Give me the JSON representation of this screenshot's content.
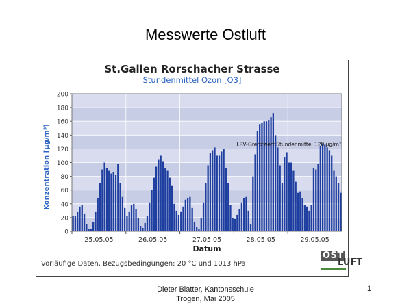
{
  "slide": {
    "title": "Messwerte Ostluft",
    "footer_line1": "Dieter Blatter, Kantonsschule",
    "footer_line2": "Trogen, Mai 2005",
    "page_number": "1"
  },
  "logo": {
    "part1": "OST",
    "part2": "LUFT",
    "accent_color": "#4a8a3c"
  },
  "colors": {
    "bar": "#1f3fa0",
    "plot_bg": "#c8cde6",
    "plot_bg_alt": "#d8dcee",
    "threshold": "#111111"
  },
  "chart_data": {
    "type": "bar",
    "title": "St.Gallen Rorschacher Strasse",
    "subtitle": "Stundenmittel Ozon [O3]",
    "xlabel": "Datum",
    "ylabel": "Konzentration [µg/m³]",
    "ylim": [
      0,
      200
    ],
    "yticks": [
      0,
      20,
      40,
      60,
      80,
      100,
      120,
      140,
      160,
      180,
      200
    ],
    "grid": true,
    "note": "Vorläufige Daten, Bezugsbedingungen: 20 °C und 1013 hPa",
    "x_tick_labels": [
      "25.05.05",
      "26.05.05",
      "27.05.05",
      "28.05.05",
      "29.05.05"
    ],
    "threshold": {
      "value": 120,
      "label": "LRV-Grenzwert Stundenmittel 120 µg/m³"
    },
    "hours_per_day": 24,
    "series": [
      {
        "values": [
          22,
          22,
          28,
          36,
          38,
          26,
          10,
          4,
          3,
          14,
          28,
          48,
          70,
          90,
          100,
          92,
          88,
          84,
          86,
          82,
          98,
          70,
          50,
          34,
          22,
          28,
          38,
          40,
          32,
          20,
          8,
          5,
          12,
          22,
          42,
          60,
          78,
          94,
          104,
          110,
          102,
          92,
          88,
          78,
          66,
          40,
          30,
          24,
          28,
          36,
          46,
          48,
          50,
          34,
          14,
          6,
          4,
          20,
          42,
          70,
          96,
          114,
          118,
          122,
          110,
          110,
          116,
          120,
          92,
          70,
          38,
          20,
          18,
          24,
          32,
          42,
          48,
          50,
          30,
          10,
          80,
          112,
          146,
          156,
          158,
          160,
          160,
          162,
          166,
          172,
          140,
          122,
          96,
          70,
          108,
          115,
          100,
          100,
          88,
          72,
          56,
          58,
          48,
          38,
          36,
          30,
          38,
          92,
          90,
          98,
          124,
          128,
          126,
          122,
          118,
          110,
          88,
          80,
          70,
          56
        ]
      }
    ]
  }
}
